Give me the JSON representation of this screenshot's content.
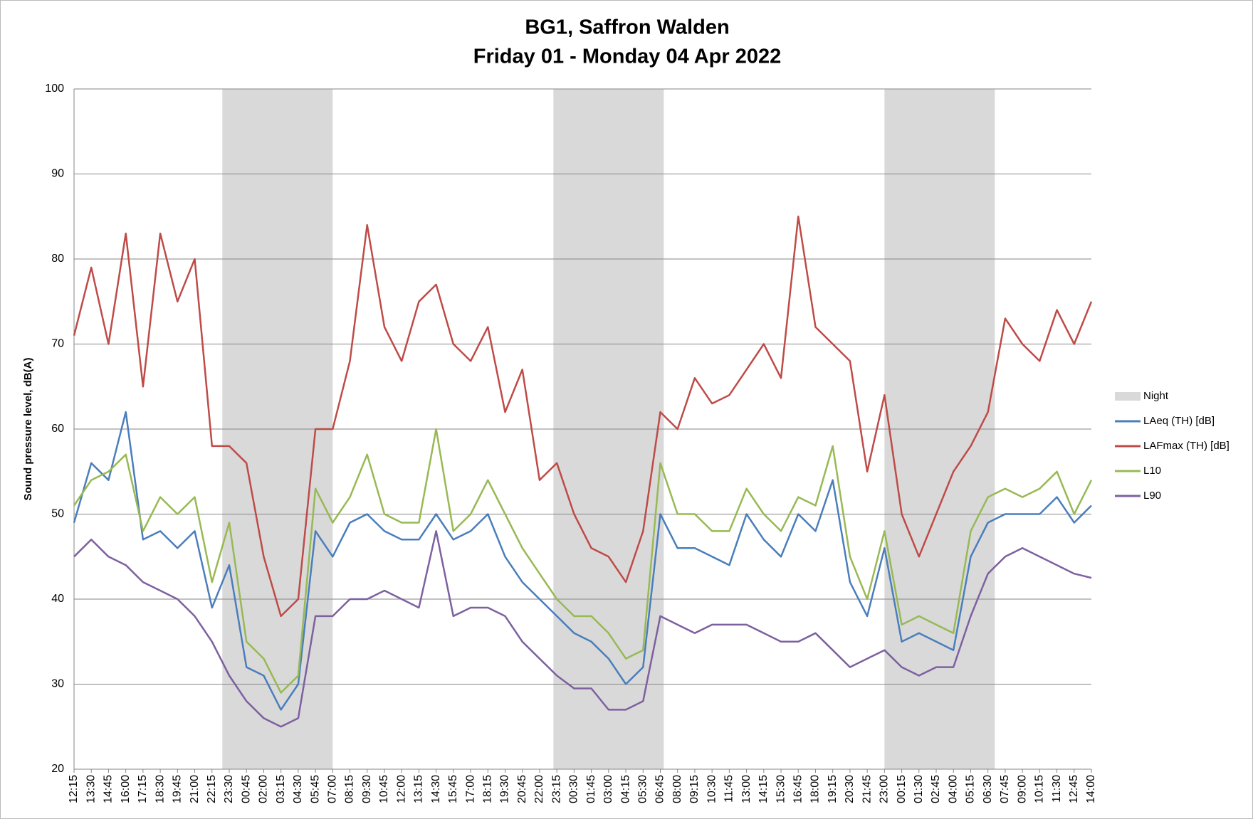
{
  "chart_data": {
    "type": "line",
    "title": "BG1, Saffron Walden",
    "subtitle": "Friday 01 - Monday 04 Apr 2022",
    "y_label": "Sound pressure level, dB(A)",
    "categories": [
      "12:15",
      "13:30",
      "14:45",
      "16:00",
      "17:15",
      "18:30",
      "19:45",
      "21:00",
      "22:15",
      "23:30",
      "00:45",
      "02:00",
      "03:15",
      "04:30",
      "05:45",
      "07:00",
      "08:15",
      "09:30",
      "10:45",
      "12:00",
      "13:15",
      "14:30",
      "15:45",
      "17:00",
      "18:15",
      "19:30",
      "20:45",
      "22:00",
      "23:15",
      "00:30",
      "01:45",
      "03:00",
      "04:15",
      "05:30",
      "06:45",
      "08:00",
      "09:15",
      "10:30",
      "11:45",
      "13:00",
      "14:15",
      "15:30",
      "16:45",
      "18:00",
      "19:15",
      "20:30",
      "21:45",
      "23:00",
      "00:15",
      "01:30",
      "02:45",
      "04:00",
      "05:15",
      "06:30",
      "07:45",
      "09:00",
      "10:15",
      "11:30",
      "12:45",
      "14:00"
    ],
    "night": {
      "name": "Night",
      "color": "#d9d9d9",
      "spans": [
        [
          8.6,
          15
        ],
        [
          27.8,
          34.2
        ],
        [
          47,
          53.4
        ]
      ]
    },
    "series": [
      {
        "name": "LAeq (TH) [dB]",
        "color": "#4a7ebb",
        "values": [
          49,
          56,
          54,
          62,
          47,
          48,
          46,
          48,
          39,
          44,
          32,
          31,
          27,
          30,
          48,
          45,
          49,
          50,
          48,
          47,
          47,
          50,
          47,
          48,
          50,
          45,
          42,
          40,
          38,
          36,
          35,
          33,
          30,
          32,
          50,
          46,
          46,
          45,
          44,
          50,
          47,
          45,
          50,
          48,
          54,
          42,
          38,
          46,
          35,
          36,
          35,
          34,
          45,
          49,
          50,
          50,
          50,
          52,
          49,
          51
        ]
      },
      {
        "name": "LAFmax (TH) [dB]",
        "color": "#be4b48",
        "values": [
          71,
          79,
          70,
          83,
          65,
          83,
          75,
          80,
          58,
          58,
          56,
          45,
          38,
          40,
          60,
          60,
          68,
          84,
          72,
          68,
          75,
          77,
          70,
          68,
          72,
          62,
          67,
          54,
          56,
          50,
          46,
          45,
          42,
          48,
          62,
          60,
          66,
          63,
          64,
          67,
          70,
          66,
          85,
          72,
          70,
          68,
          55,
          64,
          50,
          45,
          50,
          55,
          58,
          62,
          73,
          70,
          68,
          74,
          70,
          75
        ]
      },
      {
        "name": "L10",
        "color": "#98b954",
        "values": [
          51,
          54,
          55,
          57,
          48,
          52,
          50,
          52,
          42,
          49,
          35,
          33,
          29,
          31,
          53,
          49,
          52,
          57,
          50,
          49,
          49,
          60,
          48,
          50,
          54,
          50,
          46,
          43,
          40,
          38,
          38,
          36,
          33,
          34,
          56,
          50,
          50,
          48,
          48,
          53,
          50,
          48,
          52,
          51,
          58,
          45,
          40,
          48,
          37,
          38,
          37,
          36,
          48,
          52,
          53,
          52,
          53,
          55,
          50,
          54
        ]
      },
      {
        "name": "L90",
        "color": "#7d60a0",
        "values": [
          45,
          47,
          45,
          44,
          42,
          41,
          40,
          38,
          35,
          31,
          28,
          26,
          25,
          26,
          38,
          38,
          40,
          40,
          41,
          40,
          39,
          48,
          38,
          39,
          39,
          38,
          35,
          33,
          31,
          29.5,
          29.5,
          27,
          27,
          28,
          38,
          37,
          36,
          37,
          37,
          37,
          36,
          35,
          35,
          36,
          34,
          32,
          33,
          34,
          32,
          31,
          32,
          32,
          38,
          43,
          45,
          46,
          45,
          44,
          43,
          42.5
        ]
      }
    ],
    "ylim": [
      20,
      100
    ],
    "yticks": [
      20,
      30,
      40,
      50,
      60,
      70,
      80,
      90,
      100
    ],
    "grid": true
  }
}
